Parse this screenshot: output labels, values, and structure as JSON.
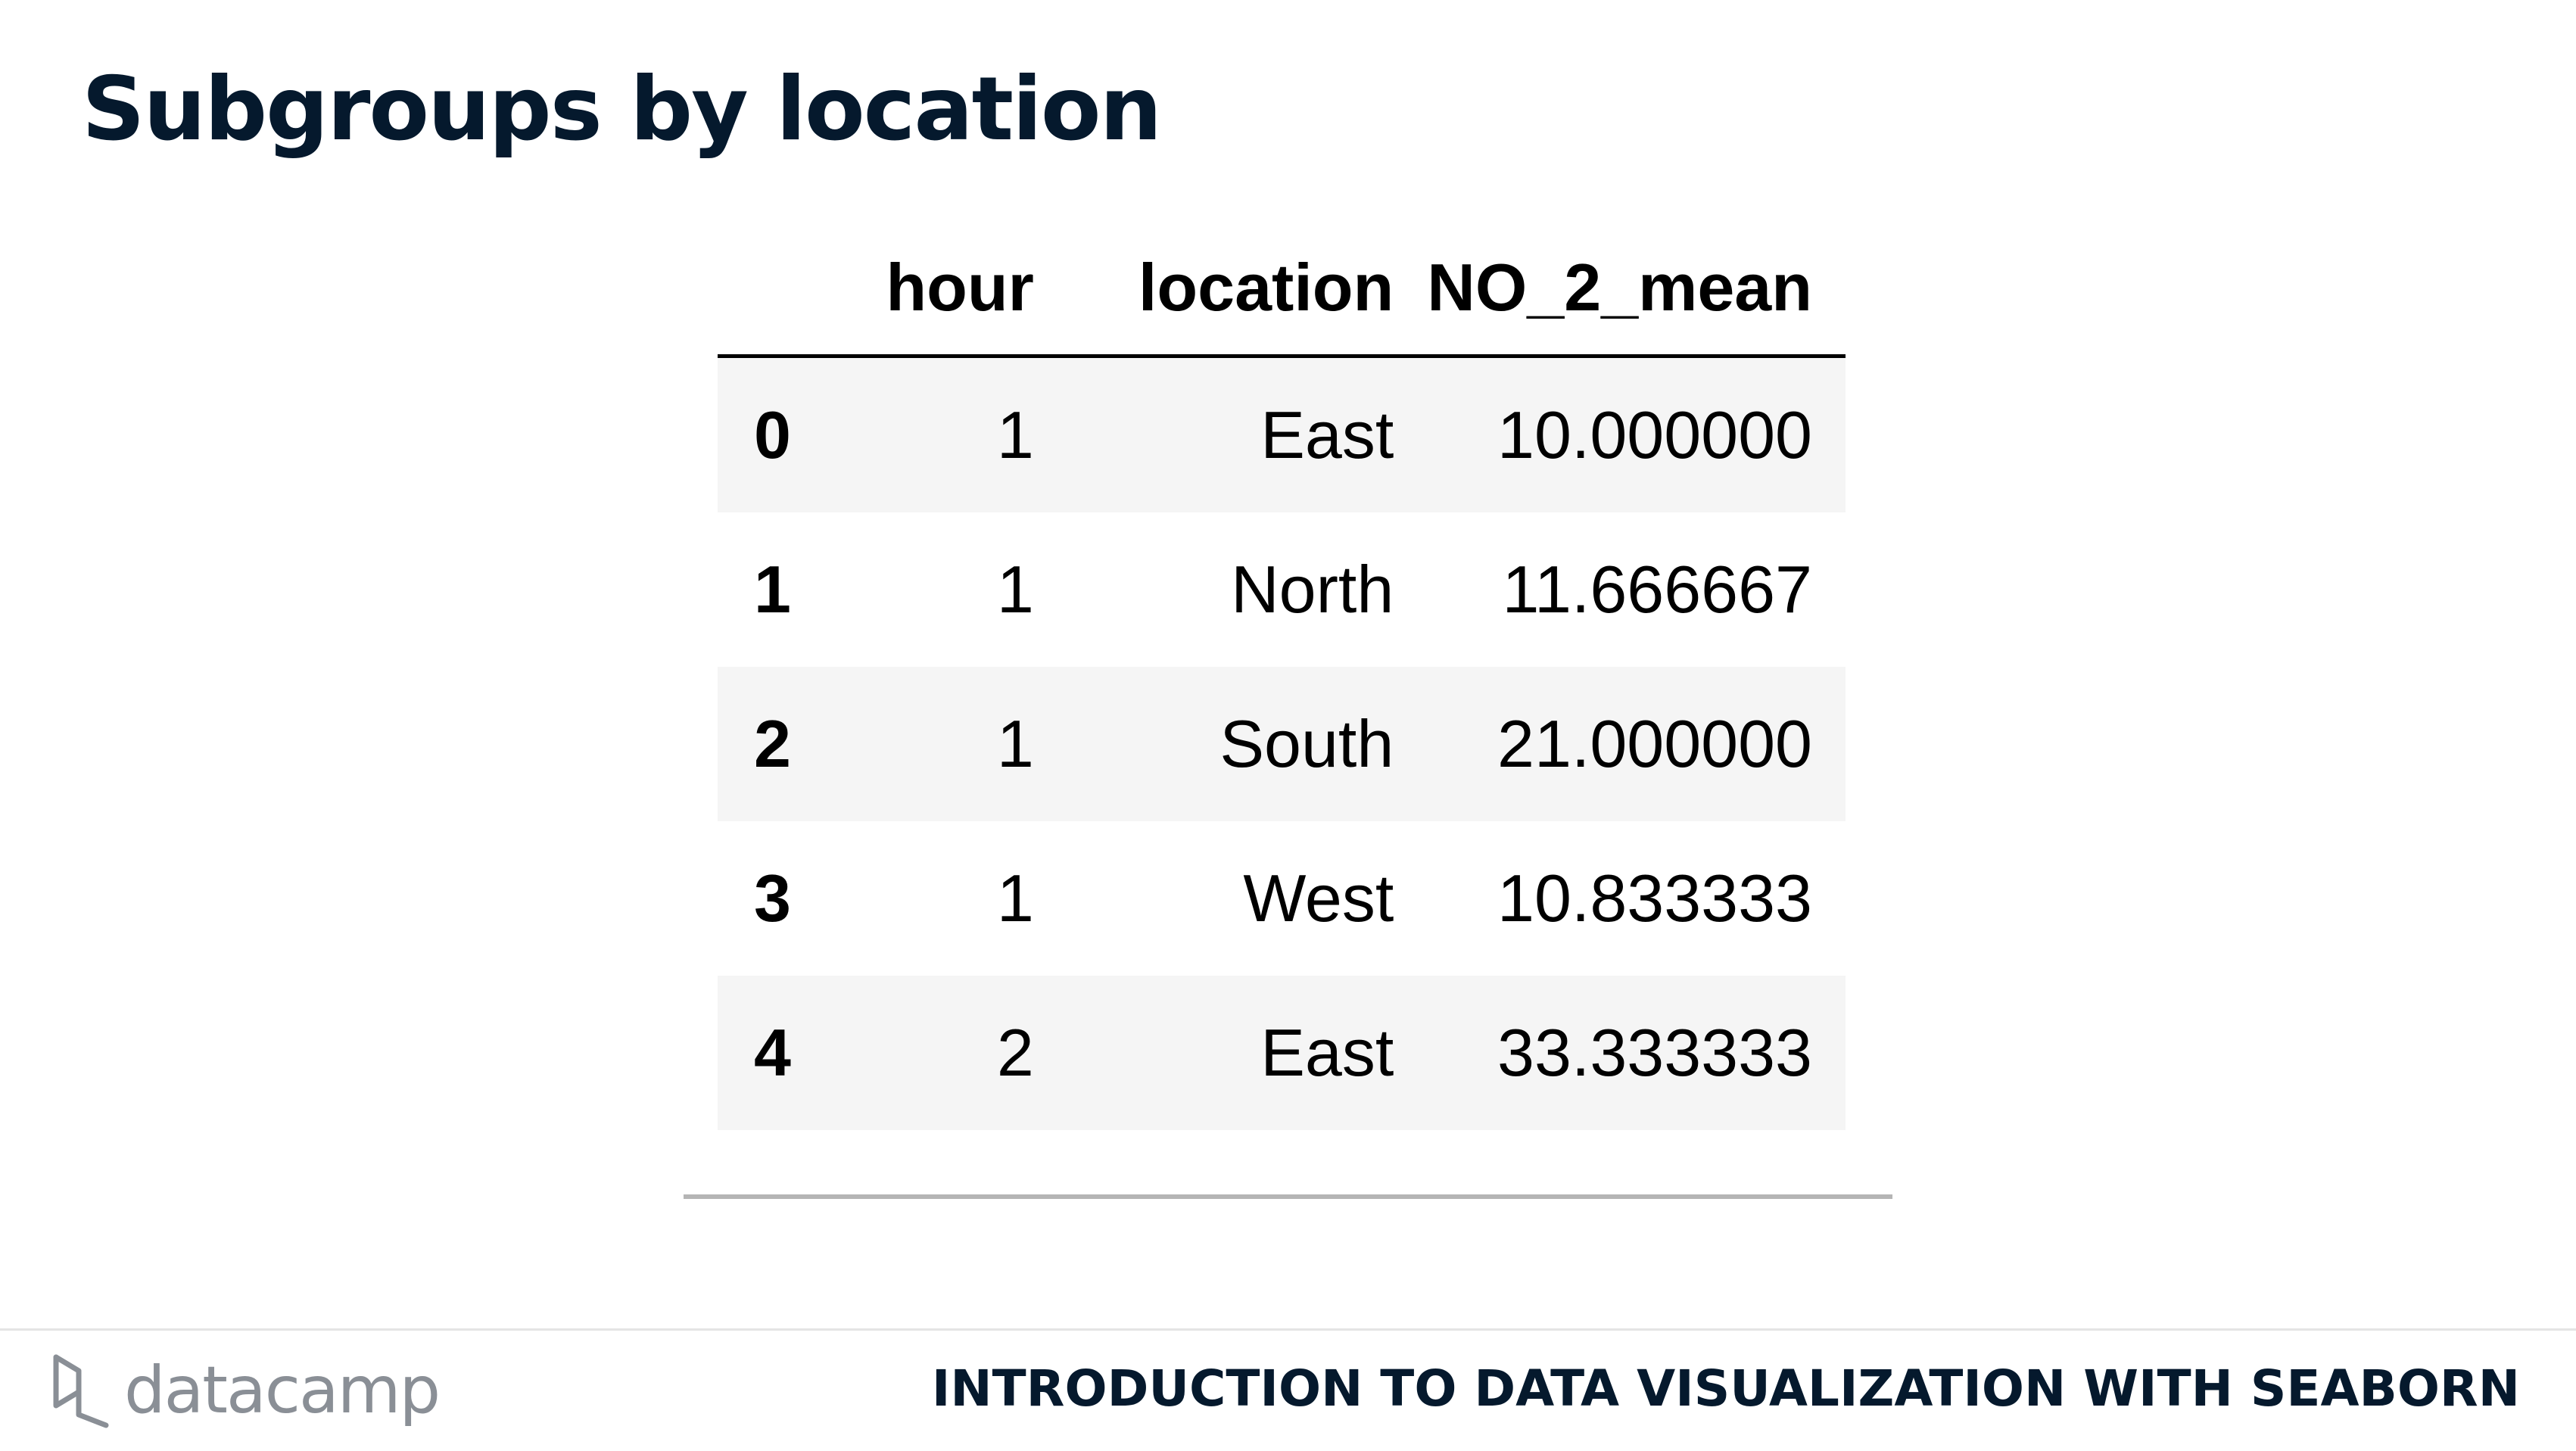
{
  "slide": {
    "title": "Subgroups by location"
  },
  "table": {
    "columns": [
      "hour",
      "location",
      "NO_2_mean"
    ],
    "rows": [
      {
        "index": "0",
        "hour": "1",
        "location": "East",
        "NO_2_mean": "10.000000"
      },
      {
        "index": "1",
        "hour": "1",
        "location": "North",
        "NO_2_mean": "11.666667"
      },
      {
        "index": "2",
        "hour": "1",
        "location": "South",
        "NO_2_mean": "21.000000"
      },
      {
        "index": "3",
        "hour": "1",
        "location": "West",
        "NO_2_mean": "10.833333"
      },
      {
        "index": "4",
        "hour": "2",
        "location": "East",
        "NO_2_mean": "33.333333"
      }
    ]
  },
  "footer": {
    "brand": "datacamp",
    "brand_icon": "datacamp-logo-icon",
    "course_title": "INTRODUCTION TO DATA VISUALIZATION WITH SEABORN"
  },
  "colors": {
    "title": "#05192d",
    "row_stripe": "#f5f5f5",
    "brand_gray": "#8a8f96"
  }
}
